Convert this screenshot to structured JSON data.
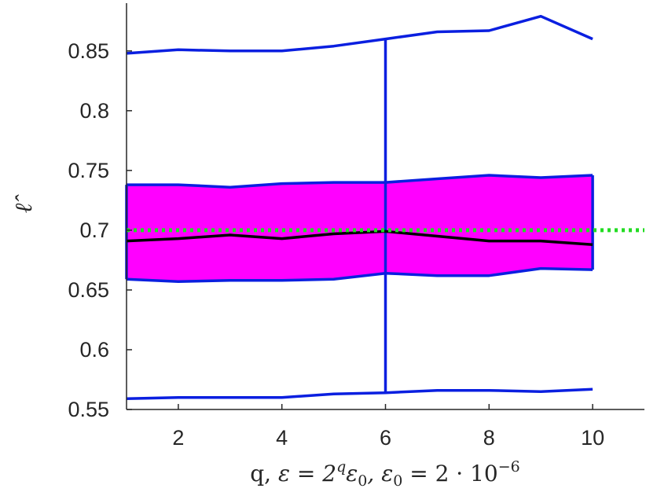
{
  "chart_data": {
    "type": "line",
    "title": "",
    "xlabel": "q, ε = 2^q ε₀, ε₀ = 2 · 10⁻⁶",
    "xlabel_parts": {
      "a": "q, ",
      "b": "ε = 2",
      "c": "q",
      "d": "ε",
      "e": "0",
      "f": ", ε",
      "g": "0",
      "h": " = 2 · 10",
      "i": "−6"
    },
    "ylabel": "ℓ̂",
    "xlim": [
      1,
      11
    ],
    "ylim": [
      0.55,
      0.89
    ],
    "xticks": [
      2,
      4,
      6,
      8,
      10
    ],
    "yticks": [
      0.55,
      0.6,
      0.65,
      0.7,
      0.75,
      0.8,
      0.85
    ],
    "ytick_labels": [
      "0.55",
      "0.6",
      "0.65",
      "0.7",
      "0.75",
      "0.8",
      "0.85"
    ],
    "grid": false,
    "x": [
      1,
      2,
      3,
      4,
      5,
      6,
      7,
      8,
      9,
      10
    ],
    "series": [
      {
        "role": "upper-whisker",
        "color": "#0a1fe0",
        "values": [
          0.848,
          0.851,
          0.85,
          0.85,
          0.854,
          0.86,
          0.866,
          0.867,
          0.879,
          0.86
        ]
      },
      {
        "role": "lower-whisker",
        "color": "#0a1fe0",
        "values": [
          0.559,
          0.56,
          0.56,
          0.56,
          0.563,
          0.564,
          0.566,
          0.566,
          0.565,
          0.567
        ]
      },
      {
        "role": "q75",
        "color": "#0a1fe0",
        "values": [
          0.738,
          0.738,
          0.736,
          0.739,
          0.74,
          0.74,
          0.743,
          0.746,
          0.744,
          0.746
        ]
      },
      {
        "role": "q25",
        "color": "#0a1fe0",
        "values": [
          0.659,
          0.657,
          0.658,
          0.658,
          0.659,
          0.664,
          0.662,
          0.662,
          0.668,
          0.667
        ]
      },
      {
        "role": "median",
        "color": "#000000",
        "values": [
          0.691,
          0.693,
          0.696,
          0.693,
          0.697,
          0.699,
          0.695,
          0.691,
          0.691,
          0.688
        ]
      }
    ],
    "band_fill": "#ff00ff",
    "reference_line": {
      "y": 0.7,
      "color": "#22dd22",
      "style": "dotted"
    },
    "vertical_line": {
      "x": 6,
      "y_from": 0.564,
      "y_to": 0.86,
      "color": "#0a1fe0"
    }
  }
}
